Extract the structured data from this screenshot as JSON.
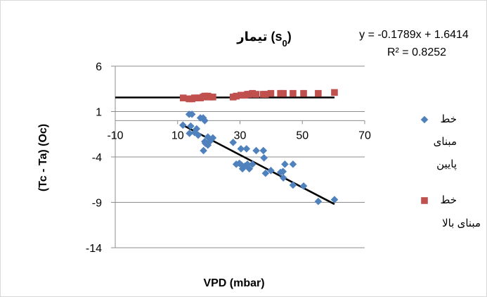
{
  "chart_data": {
    "type": "scatter",
    "title": "تیمار (s",
    "title_subscript": "0",
    "title_close": ")",
    "xlabel": "VPD (mbar)",
    "ylabel": "(Tc - Ta) (Oc)",
    "xlim": [
      -10,
      70
    ],
    "ylim": [
      -14,
      6
    ],
    "x_tick_values": [
      -10,
      10,
      30,
      50,
      70
    ],
    "x_tick_labels": [
      "-10",
      "10",
      "30",
      "50",
      "70"
    ],
    "y_tick_values": [
      6,
      1,
      -4,
      -9,
      -14
    ],
    "y_tick_labels": [
      "6",
      "1",
      "-4",
      "-9",
      "-14"
    ],
    "grid": "horizontal",
    "legend_position": "right",
    "equation": "y = -0.1789x + 1.6414",
    "r2": "R² = 0.8252",
    "series": [
      {
        "name": "خط مبنای پایین",
        "name_lines": [
          "خط",
          "مبنای",
          "پایین"
        ],
        "marker": "diamond",
        "color": "#4f81bd",
        "points": [
          [
            11.7,
            -0.5
          ],
          [
            13.7,
            0.7
          ],
          [
            14.6,
            0.7
          ],
          [
            14.2,
            -0.6
          ],
          [
            13.8,
            -1.4
          ],
          [
            15.4,
            -1.3
          ],
          [
            16.1,
            -0.9
          ],
          [
            16.6,
            -1.6
          ],
          [
            17.3,
            0.3
          ],
          [
            18.2,
            0.3
          ],
          [
            18.7,
            -2.3
          ],
          [
            18.3,
            -3.3
          ],
          [
            18.7,
            0.0
          ],
          [
            18.9,
            -2.5
          ],
          [
            19.7,
            -1.8
          ],
          [
            19.7,
            -2.7
          ],
          [
            20.3,
            -2.3
          ],
          [
            21.3,
            -1.9
          ],
          [
            27.8,
            -2.4
          ],
          [
            28.8,
            -4.8
          ],
          [
            29.8,
            -4.7
          ],
          [
            30.3,
            -3.1
          ],
          [
            30.5,
            -4.9
          ],
          [
            30.8,
            -5.3
          ],
          [
            31.6,
            -5.0
          ],
          [
            32.1,
            -3.1
          ],
          [
            32.4,
            -4.8
          ],
          [
            33.0,
            -5.3
          ],
          [
            34.0,
            -4.8
          ],
          [
            35.2,
            -3.3
          ],
          [
            37.5,
            -3.3
          ],
          [
            37.7,
            -4.1
          ],
          [
            38.2,
            -5.8
          ],
          [
            39.9,
            -5.5
          ],
          [
            43.0,
            -5.7
          ],
          [
            43.8,
            -5.6
          ],
          [
            43.9,
            -6.3
          ],
          [
            44.4,
            -4.8
          ],
          [
            47.0,
            -4.8
          ],
          [
            47.0,
            -7.1
          ],
          [
            50.4,
            -7.2
          ],
          [
            55.1,
            -8.9
          ],
          [
            60.3,
            -8.7
          ]
        ]
      },
      {
        "name": "خط مبنای بالا",
        "name_lines": [
          "خط",
          "مبنای بالا"
        ],
        "marker": "square",
        "color": "#c0504d",
        "points": [
          [
            11.8,
            2.5
          ],
          [
            13.7,
            2.4
          ],
          [
            14.6,
            2.4
          ],
          [
            15.4,
            2.5
          ],
          [
            16.1,
            2.5
          ],
          [
            17.3,
            2.5
          ],
          [
            18.2,
            2.6
          ],
          [
            18.7,
            2.7
          ],
          [
            19.7,
            2.7
          ],
          [
            20.3,
            2.6
          ],
          [
            21.3,
            2.6
          ],
          [
            27.8,
            2.6
          ],
          [
            28.8,
            2.7
          ],
          [
            30.3,
            2.8
          ],
          [
            31.6,
            2.8
          ],
          [
            32.4,
            2.9
          ],
          [
            33.0,
            2.9
          ],
          [
            34.0,
            3.0
          ],
          [
            35.2,
            2.9
          ],
          [
            37.5,
            2.9
          ],
          [
            38.2,
            2.9
          ],
          [
            39.9,
            3.0
          ],
          [
            43.0,
            3.0
          ],
          [
            43.9,
            3.0
          ],
          [
            47.0,
            3.0
          ],
          [
            50.4,
            3.0
          ],
          [
            55.1,
            3.0
          ],
          [
            60.3,
            3.1
          ]
        ]
      }
    ],
    "trendlines": [
      {
        "name": "",
        "from": [
          11.7,
          -0.5
        ],
        "to": [
          60.3,
          -9.2
        ]
      },
      {
        "name": "",
        "from": [
          -10,
          2.55
        ],
        "to": [
          60.3,
          2.55
        ]
      }
    ]
  }
}
